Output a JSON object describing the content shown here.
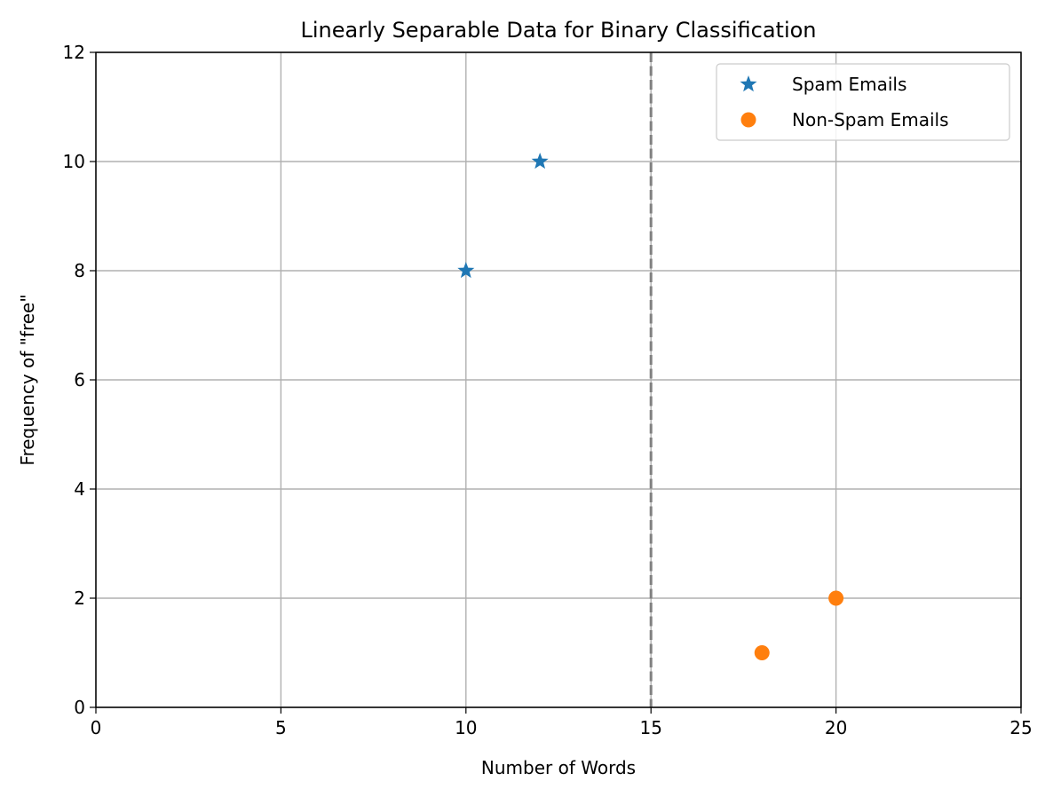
{
  "chart_data": {
    "type": "scatter",
    "title": "Linearly Separable Data for Binary Classification",
    "xlabel": "Number of Words",
    "ylabel": "Frequency of \"free\"",
    "xlim": [
      0,
      25
    ],
    "ylim": [
      0,
      12
    ],
    "xticks": [
      0,
      5,
      10,
      15,
      20,
      25
    ],
    "yticks": [
      0,
      2,
      4,
      6,
      8,
      10,
      12
    ],
    "grid": true,
    "legend_position": "top-right",
    "series": [
      {
        "name": "Spam Emails",
        "marker": "star",
        "color": "#1f77b4",
        "x": [
          10,
          12
        ],
        "y": [
          8,
          10
        ]
      },
      {
        "name": "Non-Spam Emails",
        "marker": "circle",
        "color": "#ff7f0e",
        "x": [
          18,
          20
        ],
        "y": [
          1,
          2
        ]
      }
    ],
    "decision_boundary": {
      "orientation": "vertical",
      "x": 15,
      "style": "dashed",
      "color": "#808080"
    }
  }
}
